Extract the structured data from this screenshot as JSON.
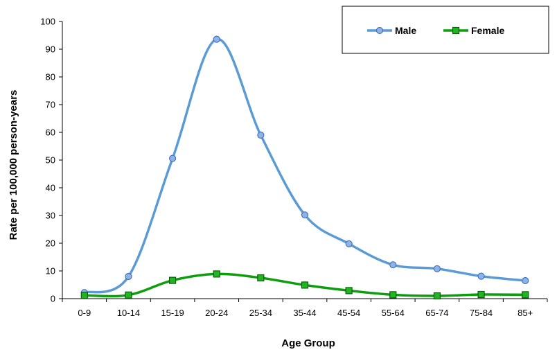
{
  "chart_data": {
    "type": "line",
    "title": "",
    "xlabel": "Age Group",
    "ylabel": "Rate per 100,000 person-years",
    "categories": [
      "0-9",
      "10-14",
      "15-19",
      "20-24",
      "25-34",
      "35-44",
      "45-54",
      "55-64",
      "65-74",
      "75-84",
      "85+"
    ],
    "ylim": [
      0,
      100
    ],
    "yticks": [
      0,
      10,
      20,
      30,
      40,
      50,
      60,
      70,
      80,
      90,
      100
    ],
    "grid": false,
    "smooth": true,
    "legend": {
      "position": "top-right"
    },
    "series": [
      {
        "name": "Male",
        "marker": "circle",
        "color": "#5b9bd5",
        "marker_fill": "#8fb4e3",
        "values": [
          2.2,
          8.0,
          50.6,
          93.6,
          59.0,
          30.2,
          19.8,
          12.2,
          10.8,
          8.1,
          6.5
        ]
      },
      {
        "name": "Female",
        "marker": "square",
        "color": "#0d9e0d",
        "marker_fill": "#22b422",
        "values": [
          1.2,
          1.3,
          6.6,
          8.9,
          7.5,
          4.9,
          2.9,
          1.4,
          1.0,
          1.5,
          1.4
        ]
      }
    ]
  }
}
